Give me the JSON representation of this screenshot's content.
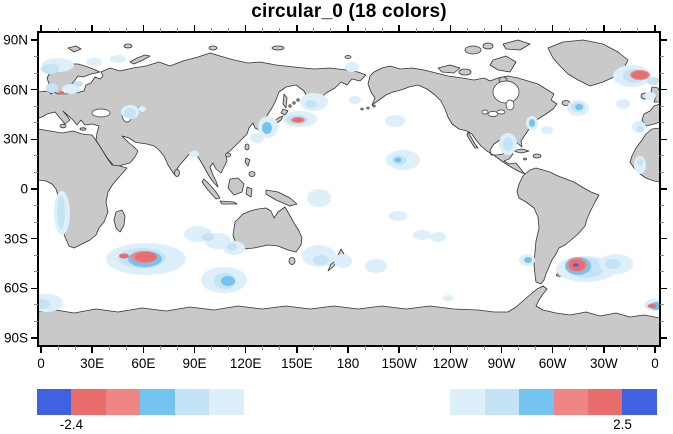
{
  "title": "circular_0 (18 colors)",
  "axes": {
    "lat_labels": [
      "90N",
      "60N",
      "30N",
      "0",
      "30S",
      "60S",
      "90S"
    ],
    "lon_labels": [
      "0",
      "30E",
      "60E",
      "90E",
      "120E",
      "150E",
      "180",
      "150W",
      "120W",
      "90W",
      "60W",
      "30W",
      "0"
    ],
    "minor_ticks_between_major": 2
  },
  "colorbar": {
    "n_colors": 18,
    "colors": [
      "#3F63E0",
      "#EA6D6D",
      "#F08585",
      "#74C3F0",
      "#C4E3F5",
      "#DCEFFA",
      "#FFFFFF",
      "#FFFFFF",
      "#FFFFFF",
      "#FFFFFF",
      "#FFFFFF",
      "#FFFFFF",
      "#DCEFFA",
      "#C4E3F5",
      "#74C3F0",
      "#F08585",
      "#EA6D6D",
      "#3F63E0"
    ],
    "boundary_labels": [
      {
        "text": "-2.4",
        "boundary_index": 1
      },
      {
        "text": "2.5",
        "boundary_index": 17
      }
    ]
  },
  "map": {
    "land_color": "#C9C9C9",
    "coast_color": "#333333",
    "ocean_color": "#FFFFFF",
    "palette": {
      "l1": "#DCEFFA",
      "l2": "#C4E3F5",
      "l3": "#74C3F0",
      "r1": "#F08585",
      "r2": "#EA6D6D",
      "b": "#3F63E0"
    },
    "patches": [
      [
        "l1",
        20,
        33,
        16,
        7
      ],
      [
        "l2",
        12,
        37,
        9,
        5
      ],
      [
        "l1",
        56,
        30,
        8,
        4
      ],
      [
        "l1",
        80,
        27,
        8,
        4
      ],
      [
        "l2",
        14,
        56,
        6,
        5
      ],
      [
        "l1",
        33,
        57,
        9,
        5
      ],
      [
        "l2",
        40,
        52,
        5,
        3
      ],
      [
        "r2",
        23,
        61,
        2.5,
        2
      ],
      [
        "l1",
        92,
        80,
        9,
        7
      ],
      [
        "l2",
        92,
        81,
        6,
        5
      ],
      [
        "l1",
        104,
        77,
        4,
        3
      ],
      [
        "l1",
        230,
        95,
        10,
        11
      ],
      [
        "l3",
        229,
        96,
        5,
        6
      ],
      [
        "l1",
        219,
        106,
        7,
        5
      ],
      [
        "l1",
        262,
        87,
        17,
        8
      ],
      [
        "l2",
        259,
        88,
        11,
        5
      ],
      [
        "r1",
        260,
        88,
        7,
        3
      ],
      [
        "r2",
        260,
        88,
        5,
        2
      ],
      [
        "l1",
        276,
        70,
        14,
        9
      ],
      [
        "l2",
        273,
        72,
        6,
        4
      ],
      [
        "l1",
        314,
        35,
        7,
        5
      ],
      [
        "l1",
        317,
        68,
        6,
        4
      ],
      [
        "l1",
        156,
        122,
        5,
        3.5
      ],
      [
        "l1",
        108,
        227,
        40,
        16
      ],
      [
        "l2",
        104,
        226,
        24,
        10
      ],
      [
        "l3",
        107,
        227,
        17,
        8
      ],
      [
        "r1",
        106,
        225,
        13,
        6
      ],
      [
        "r2",
        108,
        225,
        11,
        5
      ],
      [
        "r2",
        86,
        224,
        5,
        2.5
      ],
      [
        "l1",
        24,
        181,
        8,
        22
      ],
      [
        "l2",
        23,
        180,
        4,
        17
      ],
      [
        "l1",
        8,
        271,
        17,
        9
      ],
      [
        "l2",
        4,
        272,
        8,
        5
      ],
      [
        "l1",
        160,
        202,
        14,
        8
      ],
      [
        "l1",
        180,
        209,
        13,
        8
      ],
      [
        "l2",
        170,
        205,
        6,
        4
      ],
      [
        "l1",
        196,
        216,
        11,
        7
      ],
      [
        "l2",
        194,
        215,
        5,
        4
      ],
      [
        "l1",
        186,
        248,
        23,
        13
      ],
      [
        "l2",
        187,
        249,
        11,
        8
      ],
      [
        "l3",
        190,
        249,
        7,
        5
      ],
      [
        "l1",
        281,
        224,
        17,
        11
      ],
      [
        "l2",
        283,
        228,
        8,
        5
      ],
      [
        "l1",
        281,
        166,
        12,
        9
      ],
      [
        "l1",
        305,
        229,
        9,
        7
      ],
      [
        "l1",
        357,
        89,
        10,
        6
      ],
      [
        "l1",
        365,
        128,
        17,
        10
      ],
      [
        "l2",
        361,
        128,
        7,
        5
      ],
      [
        "l3",
        360,
        128,
        3.5,
        2.5
      ],
      [
        "l1",
        338,
        234,
        11,
        7
      ],
      [
        "l1",
        384,
        203,
        9,
        5
      ],
      [
        "l1",
        400,
        205,
        8,
        5
      ],
      [
        "l1",
        410,
        266,
        5,
        3
      ],
      [
        "l1",
        360,
        184,
        9,
        5
      ],
      [
        "l1",
        470,
        112,
        9,
        11
      ],
      [
        "l2",
        470,
        112,
        5,
        7
      ],
      [
        "l1",
        494,
        91,
        6,
        7
      ],
      [
        "l3",
        494,
        91,
        3,
        4
      ],
      [
        "l1",
        509,
        98,
        6,
        4
      ],
      [
        "l1",
        540,
        76,
        11,
        8
      ],
      [
        "l2",
        540,
        75,
        7,
        5
      ],
      [
        "l3",
        541,
        75,
        4,
        3
      ],
      [
        "l1",
        601,
        95,
        7,
        6
      ],
      [
        "l2",
        602,
        97,
        3.5,
        3
      ],
      [
        "l1",
        602,
        133,
        6,
        9
      ],
      [
        "l2",
        602,
        130,
        3,
        3.5
      ],
      [
        "l1",
        585,
        72,
        7,
        5
      ],
      [
        "l1",
        594,
        44,
        19,
        11
      ],
      [
        "l2",
        596,
        44,
        11,
        7
      ],
      [
        "r1",
        602,
        43,
        10,
        5
      ],
      [
        "r2",
        602,
        43,
        8,
        4
      ],
      [
        "l2",
        615,
        49,
        6,
        4
      ],
      [
        "l1",
        612,
        64,
        6,
        4
      ],
      [
        "l1",
        548,
        237,
        30,
        13
      ],
      [
        "l2",
        549,
        236,
        17,
        10
      ],
      [
        "l3",
        540,
        234,
        13,
        9
      ],
      [
        "r1",
        539,
        233,
        10,
        7
      ],
      [
        "r2",
        539,
        233,
        8,
        6
      ],
      [
        "b",
        538,
        233,
        3,
        1.8
      ],
      [
        "l1",
        578,
        232,
        17,
        10
      ],
      [
        "l2",
        575,
        232,
        8,
        5
      ],
      [
        "l1",
        489,
        228,
        8,
        6
      ],
      [
        "l3",
        490,
        228,
        4,
        3
      ],
      [
        "l1",
        616,
        273,
        10,
        6
      ],
      [
        "l3",
        618,
        274,
        6,
        4
      ],
      [
        "r2",
        614,
        274,
        4.5,
        2.2
      ]
    ]
  },
  "chart_data": {
    "type": "heatmap",
    "subtype": "filled-contour world map (equirectangular, 0E-360E, 90N-90S)",
    "title": "circular_0 (18 colors)",
    "xlabel": "longitude",
    "ylabel": "latitude",
    "x_tick_labels": [
      "0",
      "30E",
      "60E",
      "90E",
      "120E",
      "150E",
      "180",
      "150W",
      "120W",
      "90W",
      "60W",
      "30W",
      "0"
    ],
    "y_tick_labels": [
      "90N",
      "60N",
      "30N",
      "0",
      "30S",
      "60S",
      "90S"
    ],
    "colorbar_n_colors": 18,
    "colorbar_labeled_levels": [
      -2.4,
      2.5
    ],
    "colorbar_colors": [
      "#3F63E0",
      "#EA6D6D",
      "#F08585",
      "#74C3F0",
      "#C4E3F5",
      "#DCEFFA",
      "white",
      "white",
      "white",
      "white",
      "white",
      "white",
      "#DCEFFA",
      "#C4E3F5",
      "#74C3F0",
      "#F08585",
      "#EA6D6D",
      "#3F63E0"
    ],
    "features": [
      {
        "region": "North Atlantic at Iceland (~20W, 65N)",
        "value": "red maximum surrounded by light blue"
      },
      {
        "region": "SW Indian Ocean south of Madagascar (~60E, 45S)",
        "value": "elongated red maximum inside blue envelope"
      },
      {
        "region": "South Atlantic east of Argentina (~50W, 45S)",
        "value": "red maximum with saturated royal-blue core dot"
      },
      {
        "region": "NW Pacific east of Japan (~150E, 38N)",
        "value": "small red spot inside light blue patch"
      },
      {
        "region": "Baltic Sea entrance (~12E, 56N)",
        "value": "tiny red dot"
      },
      {
        "region": "South Atlantic at map right edge (~5W, 67S)",
        "value": "small red spot with blue halo"
      },
      {
        "region": "many ocean areas (Arctic coast, Sea of Japan, Okhotsk, central Pacific, Gulf of Mexico, Newfoundland, Namibia coast, Southern Ocean)",
        "value": "weak light-blue patches"
      }
    ]
  }
}
